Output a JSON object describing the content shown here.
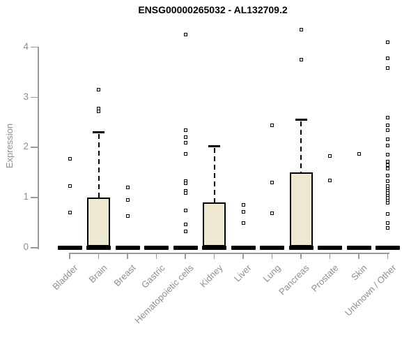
{
  "chart_data": {
    "type": "box",
    "title": "ENSG00000265032 - AL132709.2",
    "ylabel": "Expression",
    "xlabel": "",
    "ylim": [
      0,
      4.4
    ],
    "yticks": [
      0,
      1,
      2,
      3,
      4
    ],
    "grid": false,
    "legend": "none",
    "colors": {
      "box_fill": "#EDE8CF",
      "box_border": "#000000",
      "median_bar": "#000000",
      "axis": "#9A9A9A",
      "tick_label": "#8E8E8E",
      "title": "#000000"
    },
    "categories": [
      "Bladder",
      "Brain",
      "Breast",
      "Gastric",
      "Hematopoietic cells",
      "Kidney",
      "Liver",
      "Lung",
      "Pancreas",
      "Prostate",
      "Skin",
      "Unknown / Other"
    ],
    "series": [
      {
        "category": "Bladder",
        "median": 0,
        "q1": 0,
        "q3": 0,
        "whisker_low": 0,
        "whisker_high": 0,
        "outliers": [
          1.77,
          1.23,
          0.71
        ]
      },
      {
        "category": "Brain",
        "median": 0,
        "q1": 0,
        "q3": 1.0,
        "whisker_low": 0,
        "whisker_high": 2.3,
        "outliers": [
          3.16,
          2.78,
          2.72
        ]
      },
      {
        "category": "Breast",
        "median": 0,
        "q1": 0,
        "q3": 0,
        "whisker_low": 0,
        "whisker_high": 0,
        "outliers": [
          1.21,
          0.95,
          0.63
        ]
      },
      {
        "category": "Gastric",
        "median": 0,
        "q1": 0,
        "q3": 0,
        "whisker_low": 0,
        "whisker_high": 0,
        "outliers": []
      },
      {
        "category": "Hematopoietic cells",
        "median": 0,
        "q1": 0,
        "q3": 0,
        "whisker_low": 0,
        "whisker_high": 0,
        "outliers": [
          4.25,
          2.34,
          2.21,
          2.1,
          1.88,
          1.33,
          1.29,
          1.13,
          1.09,
          0.75,
          0.46,
          0.33
        ]
      },
      {
        "category": "Kidney",
        "median": 0,
        "q1": 0,
        "q3": 0.91,
        "whisker_low": 0,
        "whisker_high": 2.02,
        "outliers": []
      },
      {
        "category": "Liver",
        "median": 0,
        "q1": 0,
        "q3": 0,
        "whisker_low": 0,
        "whisker_high": 0,
        "outliers": [
          0.85,
          0.72,
          0.49
        ]
      },
      {
        "category": "Lung",
        "median": 0,
        "q1": 0,
        "q3": 0,
        "whisker_low": 0,
        "whisker_high": 0,
        "outliers": [
          2.44,
          1.3,
          0.69
        ]
      },
      {
        "category": "Pancreas",
        "median": 0,
        "q1": 0,
        "q3": 1.5,
        "whisker_low": 0,
        "whisker_high": 2.55,
        "outliers": [
          4.35,
          3.75
        ]
      },
      {
        "category": "Prostate",
        "median": 0,
        "q1": 0,
        "q3": 0,
        "whisker_low": 0,
        "whisker_high": 0,
        "outliers": [
          1.83,
          1.34
        ]
      },
      {
        "category": "Skin",
        "median": 0,
        "q1": 0,
        "q3": 0,
        "whisker_low": 0,
        "whisker_high": 0,
        "outliers": [
          1.88
        ]
      },
      {
        "category": "Unknown / Other",
        "median": 0,
        "q1": 0,
        "q3": 0,
        "whisker_low": 0,
        "whisker_high": 0,
        "outliers": [
          4.1,
          3.78,
          3.58,
          2.6,
          2.44,
          2.34,
          2.17,
          2.04,
          1.86,
          1.72,
          1.65,
          1.58,
          1.44,
          1.33,
          1.23,
          1.18,
          1.14,
          1.09,
          1.04,
          0.99,
          0.94,
          0.9,
          0.67,
          0.49,
          0.39
        ]
      }
    ]
  }
}
